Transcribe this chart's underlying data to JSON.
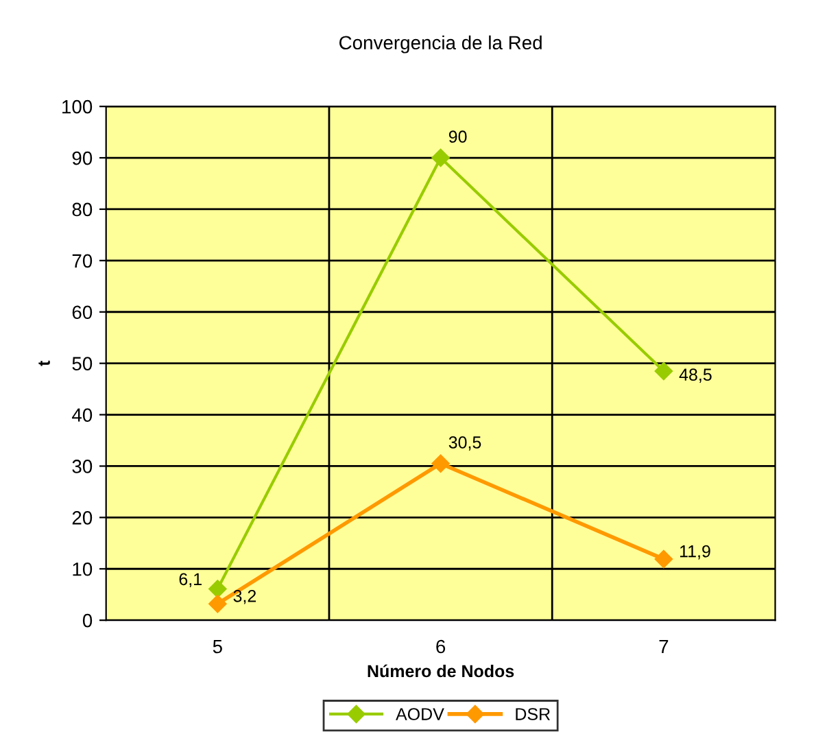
{
  "chart_data": {
    "type": "line",
    "title": "Convergencia de la Red",
    "xlabel": "Número de Nodos",
    "ylabel": "t",
    "categories": [
      "5",
      "6",
      "7"
    ],
    "series": [
      {
        "name": "AODV",
        "color": "#99cc00",
        "values": [
          6.1,
          90,
          48.5
        ],
        "value_labels": [
          "6,1",
          "90",
          "48,5"
        ]
      },
      {
        "name": "DSR",
        "color": "#ff9900",
        "values": [
          3.2,
          30.5,
          11.9
        ],
        "value_labels": [
          "3,2",
          "30,5",
          "11,9"
        ]
      }
    ],
    "ylim": [
      0,
      100
    ],
    "yticks": [
      0,
      10,
      20,
      30,
      40,
      50,
      60,
      70,
      80,
      90,
      100
    ],
    "grid": true,
    "legend": "bottom",
    "marker": "diamond",
    "line_style": "solid"
  }
}
